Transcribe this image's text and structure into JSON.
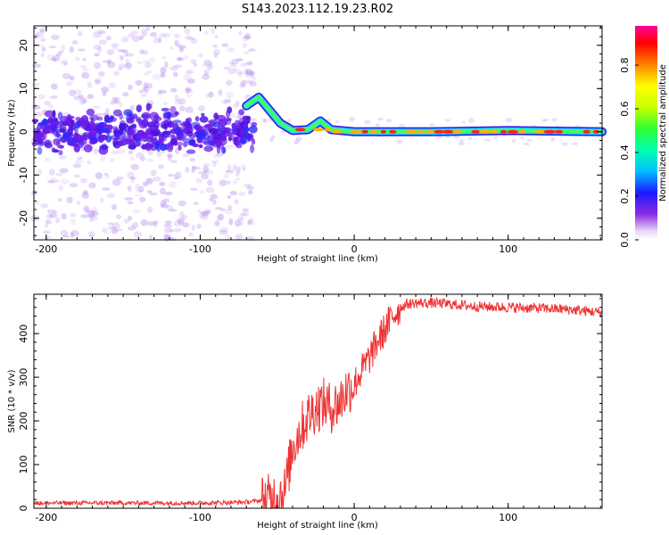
{
  "title": "S143.2023.112.19.23.R02",
  "chart_data": [
    {
      "type": "heatmap",
      "xlabel": "Height of straight line (km)",
      "ylabel": "Frequency (Hz)",
      "xlim": [
        -208,
        161
      ],
      "ylim": [
        -25,
        24.5
      ],
      "xticks": [
        -200,
        -100,
        0,
        100
      ],
      "xtick_labels": [
        "-200",
        "-100",
        "0",
        "100"
      ],
      "yticks": [
        -20,
        -10,
        0,
        10,
        20
      ],
      "ytick_labels": [
        "-20",
        "-10",
        "0",
        "10",
        "20"
      ],
      "colorbar": {
        "label": "Normalized spectral amplitude",
        "range": [
          0,
          0.98
        ],
        "ticks": [
          0.0,
          0.2,
          0.4,
          0.6,
          0.8
        ],
        "tick_labels": [
          "0.0",
          "0.2",
          "0.4",
          "0.6",
          "0.8"
        ]
      },
      "signal_track": [
        {
          "x": -70,
          "y": 6
        },
        {
          "x": -62,
          "y": 8
        },
        {
          "x": -55,
          "y": 5
        },
        {
          "x": -48,
          "y": 2
        },
        {
          "x": -40,
          "y": 0.3
        },
        {
          "x": -30,
          "y": 0.5
        },
        {
          "x": -22,
          "y": 2.5
        },
        {
          "x": -15,
          "y": 0.5
        },
        {
          "x": 0,
          "y": 0
        },
        {
          "x": 50,
          "y": 0
        },
        {
          "x": 100,
          "y": 0.3
        },
        {
          "x": 161,
          "y": 0
        }
      ],
      "noise_region_x": [
        -208,
        -65
      ],
      "noise_region_y": [
        -25,
        24
      ]
    },
    {
      "type": "line",
      "xlabel": "Height of straight line (km)",
      "ylabel": "SNR (10 * v/v)",
      "xlim": [
        -208,
        161
      ],
      "ylim": [
        0,
        490
      ],
      "xticks": [
        -200,
        -100,
        0,
        100
      ],
      "xtick_labels": [
        "-200",
        "-100",
        "0",
        "100"
      ],
      "yticks": [
        0,
        100,
        200,
        300,
        400
      ],
      "ytick_labels": [
        "0",
        "100",
        "200",
        "300",
        "400"
      ],
      "color": "#ee3333",
      "series": [
        {
          "name": "SNR",
          "x": [
            -208,
            -150,
            -100,
            -70,
            -55,
            -45,
            -40,
            -35,
            -30,
            -25,
            -20,
            -15,
            -10,
            -5,
            0,
            5,
            10,
            15,
            20,
            25,
            30,
            35,
            40,
            50,
            60,
            80,
            100,
            120,
            140,
            161
          ],
          "y": [
            12,
            12,
            12,
            14,
            20,
            40,
            140,
            180,
            210,
            230,
            240,
            230,
            240,
            270,
            285,
            315,
            345,
            380,
            410,
            440,
            460,
            468,
            470,
            470,
            468,
            462,
            460,
            458,
            455,
            448
          ]
        }
      ]
    }
  ]
}
